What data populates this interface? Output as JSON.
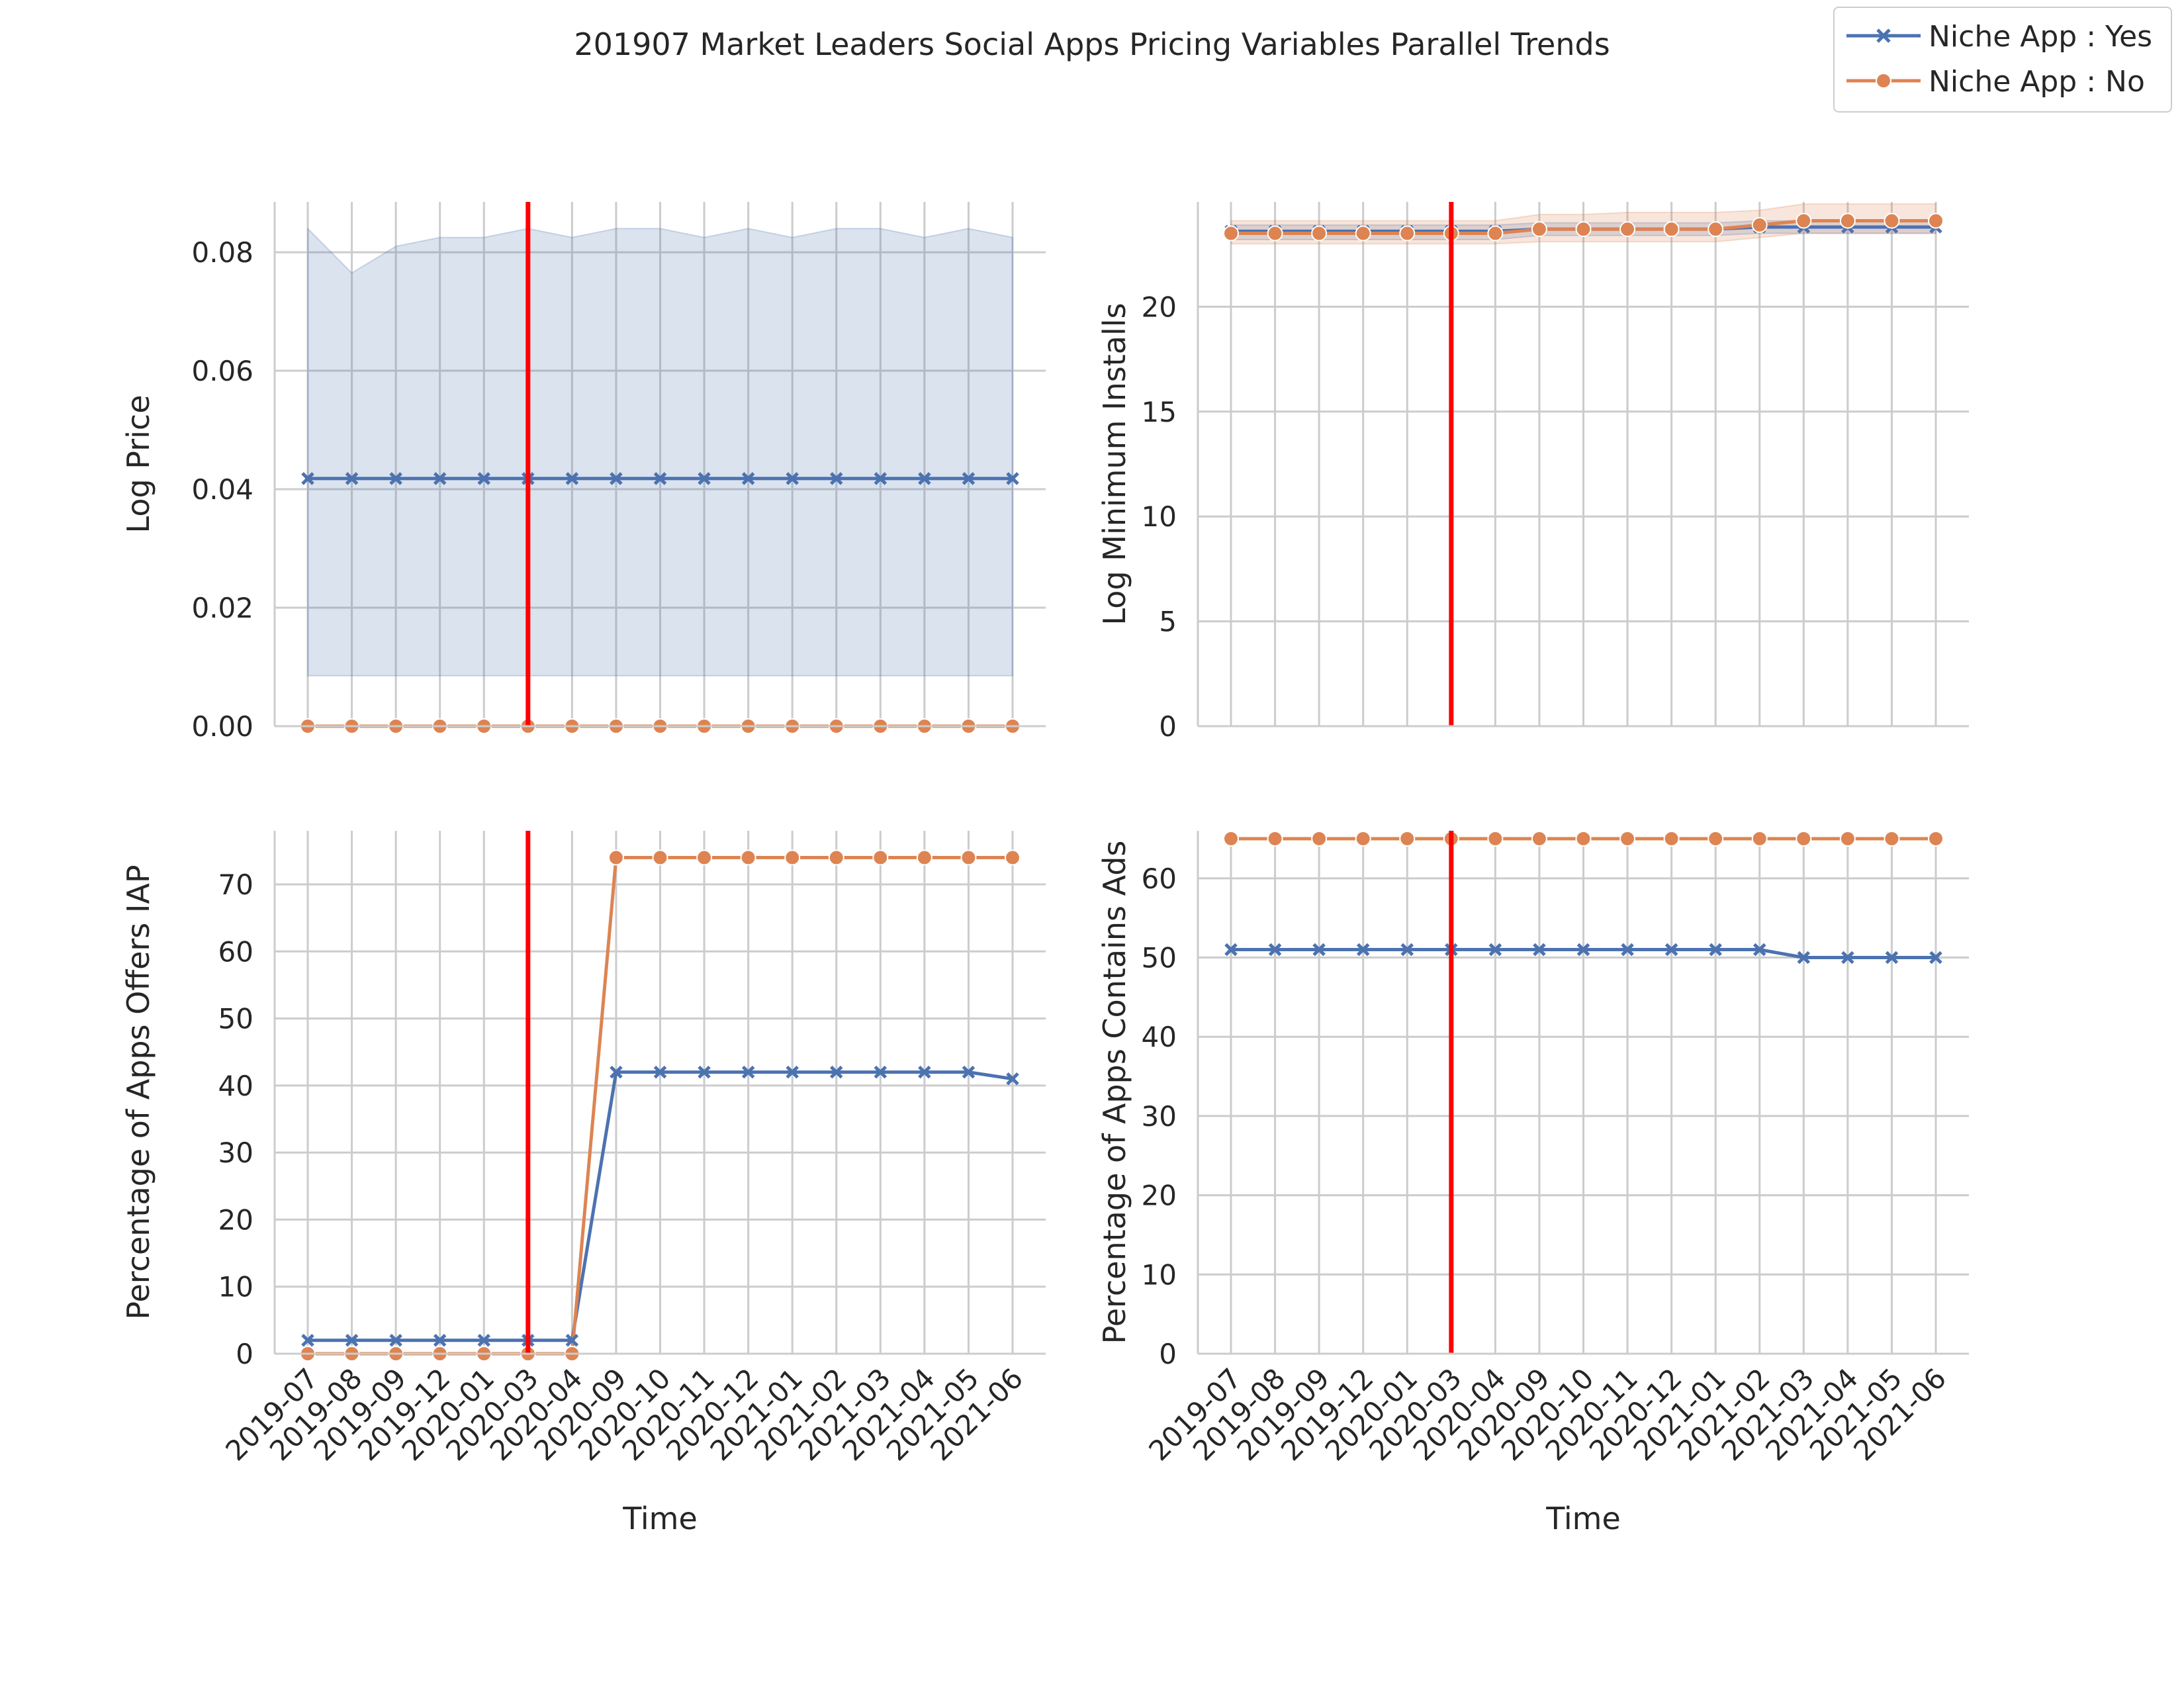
{
  "figure": {
    "title": "201907 Market Leaders Social Apps Pricing Variables Parallel Trends"
  },
  "legend": {
    "items": [
      {
        "label": "Niche App : Yes",
        "color": "#4c72b0",
        "marker": "x"
      },
      {
        "label": "Niche App : No",
        "color": "#dd8452",
        "marker": "circle"
      }
    ]
  },
  "colors": {
    "yes": "#4c72b0",
    "no": "#dd8452",
    "event_line": "#ff0000",
    "grid": "#cccccc"
  },
  "chart_data": [
    {
      "type": "line",
      "ylabel": "Log Price",
      "xlabel": "",
      "ylim": [
        0,
        0.0885
      ],
      "yticks": [
        "0.00",
        "0.02",
        "0.04",
        "0.06",
        "0.08"
      ],
      "ytick_values": [
        0,
        0.02,
        0.04,
        0.06,
        0.08
      ],
      "categories": [
        "2019-07",
        "2019-08",
        "2019-09",
        "2019-12",
        "2020-01",
        "2020-03",
        "2020-04",
        "2020-09",
        "2020-10",
        "2020-11",
        "2020-12",
        "2021-01",
        "2021-02",
        "2021-03",
        "2021-04",
        "2021-05",
        "2021-06"
      ],
      "event_category": "2020-03",
      "series": [
        {
          "name": "Niche App : Yes",
          "values": [
            0.0418,
            0.0418,
            0.0418,
            0.0418,
            0.0418,
            0.0418,
            0.0418,
            0.0418,
            0.0418,
            0.0418,
            0.0418,
            0.0418,
            0.0418,
            0.0418,
            0.0418,
            0.0418,
            0.0418
          ],
          "ci_upper": [
            0.084,
            0.0765,
            0.081,
            0.0825,
            0.0825,
            0.084,
            0.0825,
            0.084,
            0.084,
            0.0825,
            0.084,
            0.0825,
            0.084,
            0.084,
            0.0825,
            0.084,
            0.0825
          ],
          "ci_lower": [
            0.0085,
            0.0085,
            0.0085,
            0.0085,
            0.0085,
            0.0085,
            0.0085,
            0.0085,
            0.0085,
            0.0085,
            0.0085,
            0.0085,
            0.0085,
            0.0085,
            0.0085,
            0.0085,
            0.0085
          ]
        },
        {
          "name": "Niche App : No",
          "values": [
            0,
            0,
            0,
            0,
            0,
            0,
            0,
            0,
            0,
            0,
            0,
            0,
            0,
            0,
            0,
            0,
            0
          ]
        }
      ]
    },
    {
      "type": "line",
      "ylabel": "Log Minimum Installs",
      "xlabel": "",
      "ylim": [
        0,
        25
      ],
      "yticks": [
        "0",
        "5",
        "10",
        "15",
        "20"
      ],
      "ytick_values": [
        0,
        5,
        10,
        15,
        20
      ],
      "categories": [
        "2019-07",
        "2019-08",
        "2019-09",
        "2019-12",
        "2020-01",
        "2020-03",
        "2020-04",
        "2020-09",
        "2020-10",
        "2020-11",
        "2020-12",
        "2021-01",
        "2021-02",
        "2021-03",
        "2021-04",
        "2021-05",
        "2021-06"
      ],
      "event_category": "2020-03",
      "series": [
        {
          "name": "Niche App : Yes",
          "values": [
            23.6,
            23.6,
            23.6,
            23.6,
            23.6,
            23.6,
            23.6,
            23.7,
            23.7,
            23.7,
            23.7,
            23.7,
            23.8,
            23.8,
            23.8,
            23.8,
            23.8
          ],
          "ci_upper": [
            23.9,
            23.9,
            23.9,
            23.9,
            23.9,
            23.9,
            23.9,
            24.0,
            24.0,
            24.0,
            24.0,
            24.0,
            24.1,
            24.1,
            24.1,
            24.1,
            24.1
          ],
          "ci_lower": [
            23.2,
            23.2,
            23.2,
            23.2,
            23.2,
            23.2,
            23.2,
            23.4,
            23.4,
            23.4,
            23.4,
            23.4,
            23.5,
            23.5,
            23.5,
            23.5,
            23.5
          ]
        },
        {
          "name": "Niche App : No",
          "values": [
            23.5,
            23.5,
            23.5,
            23.5,
            23.5,
            23.5,
            23.5,
            23.7,
            23.7,
            23.7,
            23.7,
            23.7,
            23.9,
            24.1,
            24.1,
            24.1,
            24.1
          ],
          "ci_upper": [
            24.1,
            24.1,
            24.1,
            24.1,
            24.1,
            24.1,
            24.1,
            24.4,
            24.4,
            24.5,
            24.5,
            24.5,
            24.6,
            24.9,
            24.9,
            24.9,
            24.9
          ],
          "ci_lower": [
            23.0,
            23.0,
            23.0,
            23.0,
            23.0,
            23.0,
            23.0,
            23.1,
            23.1,
            23.1,
            23.1,
            23.1,
            23.3,
            23.5,
            23.5,
            23.5,
            23.5
          ]
        }
      ]
    },
    {
      "type": "line",
      "ylabel": "Percentage of Apps Offers IAP",
      "xlabel": "Time",
      "ylim": [
        0,
        78
      ],
      "yticks": [
        "0",
        "10",
        "20",
        "30",
        "40",
        "50",
        "60",
        "70"
      ],
      "ytick_values": [
        0,
        10,
        20,
        30,
        40,
        50,
        60,
        70
      ],
      "categories": [
        "2019-07",
        "2019-08",
        "2019-09",
        "2019-12",
        "2020-01",
        "2020-03",
        "2020-04",
        "2020-09",
        "2020-10",
        "2020-11",
        "2020-12",
        "2021-01",
        "2021-02",
        "2021-03",
        "2021-04",
        "2021-05",
        "2021-06"
      ],
      "event_category": "2020-03",
      "series": [
        {
          "name": "Niche App : Yes",
          "values": [
            2,
            2,
            2,
            2,
            2,
            2,
            2,
            42,
            42,
            42,
            42,
            42,
            42,
            42,
            42,
            42,
            41
          ]
        },
        {
          "name": "Niche App : No",
          "values": [
            0,
            0,
            0,
            0,
            0,
            0,
            0,
            74,
            74,
            74,
            74,
            74,
            74,
            74,
            74,
            74,
            74
          ]
        }
      ]
    },
    {
      "type": "line",
      "ylabel": "Percentage of Apps Contains Ads",
      "xlabel": "Time",
      "ylim": [
        0,
        66
      ],
      "yticks": [
        "0",
        "10",
        "20",
        "30",
        "40",
        "50",
        "60"
      ],
      "ytick_values": [
        0,
        10,
        20,
        30,
        40,
        50,
        60
      ],
      "categories": [
        "2019-07",
        "2019-08",
        "2019-09",
        "2019-12",
        "2020-01",
        "2020-03",
        "2020-04",
        "2020-09",
        "2020-10",
        "2020-11",
        "2020-12",
        "2021-01",
        "2021-02",
        "2021-03",
        "2021-04",
        "2021-05",
        "2021-06"
      ],
      "event_category": "2020-03",
      "series": [
        {
          "name": "Niche App : Yes",
          "values": [
            51,
            51,
            51,
            51,
            51,
            51,
            51,
            51,
            51,
            51,
            51,
            51,
            51,
            50,
            50,
            50,
            50
          ]
        },
        {
          "name": "Niche App : No",
          "values": [
            65,
            65,
            65,
            65,
            65,
            65,
            65,
            65,
            65,
            65,
            65,
            65,
            65,
            65,
            65,
            65,
            65
          ]
        }
      ]
    }
  ]
}
